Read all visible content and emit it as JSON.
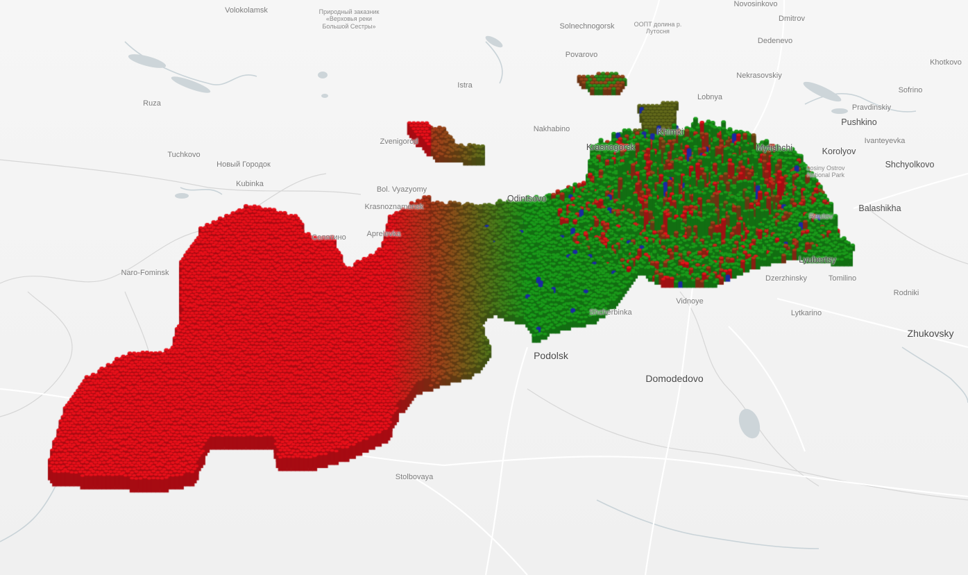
{
  "colors": {
    "land": "#f2f2f2",
    "water": "#cfd6d9",
    "road": "#ffffff",
    "boundary": "#d4d4d4",
    "hex_low": "#1a9a1a",
    "hex_high": "#e8101a",
    "hex_accent": "#1a2aa0"
  },
  "places": [
    {
      "name": "Volokolamsk",
      "size": "small"
    },
    {
      "name": "Природный заказник «Верховья реки Большой Сестры»",
      "size": "tiny"
    },
    {
      "name": "Solnechnogorsk",
      "size": "small"
    },
    {
      "name": "ООПТ долина р. Лутосня",
      "size": "tiny"
    },
    {
      "name": "Novosinkovo",
      "size": "small"
    },
    {
      "name": "Dmitrov",
      "size": "small"
    },
    {
      "name": "Dedenevo",
      "size": "small"
    },
    {
      "name": "Povarovo",
      "size": "small"
    },
    {
      "name": "Khotkovo",
      "size": "small"
    },
    {
      "name": "Nekrasovskiy",
      "size": "small"
    },
    {
      "name": "Istra",
      "size": "small"
    },
    {
      "name": "Lobnya",
      "size": "small"
    },
    {
      "name": "Sofrino",
      "size": "small"
    },
    {
      "name": "Ruza",
      "size": "small"
    },
    {
      "name": "Pravdinskiy",
      "size": "small"
    },
    {
      "name": "Pushkino",
      "size": "medium"
    },
    {
      "name": "Nakhabino",
      "size": "small"
    },
    {
      "name": "Khimki",
      "size": "medium"
    },
    {
      "name": "Ivanteyevka",
      "size": "small"
    },
    {
      "name": "Zvenigorod",
      "size": "small"
    },
    {
      "name": "Mytishchi",
      "size": "medium"
    },
    {
      "name": "Korolyov",
      "size": "medium"
    },
    {
      "name": "Krasnogorsk",
      "size": "medium"
    },
    {
      "name": "Tuchkovo",
      "size": "small"
    },
    {
      "name": "Новый Городок",
      "size": "small"
    },
    {
      "name": "Shchyolkovo",
      "size": "medium"
    },
    {
      "name": "Losiny Ostrov National Park",
      "size": "tiny"
    },
    {
      "name": "Kubinka",
      "size": "small"
    },
    {
      "name": "Bol. Vyazyomy",
      "size": "small"
    },
    {
      "name": "Odintsovo",
      "size": "medium"
    },
    {
      "name": "Balashikha",
      "size": "medium"
    },
    {
      "name": "Krasnoznamensk",
      "size": "small"
    },
    {
      "name": "Reutov",
      "size": "small"
    },
    {
      "name": "Aprelevka",
      "size": "small"
    },
    {
      "name": "Селятино",
      "size": "small"
    },
    {
      "name": "Naro-Fominsk",
      "size": "small"
    },
    {
      "name": "Lyubertsy",
      "size": "medium"
    },
    {
      "name": "Dzerzhinsky",
      "size": "small"
    },
    {
      "name": "Tomilino",
      "size": "small"
    },
    {
      "name": "Rodniki",
      "size": "small"
    },
    {
      "name": "Vidnoye",
      "size": "small"
    },
    {
      "name": "Lytkarino",
      "size": "small"
    },
    {
      "name": "Shcherbinka",
      "size": "small"
    },
    {
      "name": "Zhukovsky",
      "size": "major"
    },
    {
      "name": "Podolsk",
      "size": "major"
    },
    {
      "name": "Domodedovo",
      "size": "major"
    },
    {
      "name": "Stolbovaya",
      "size": "small"
    }
  ]
}
